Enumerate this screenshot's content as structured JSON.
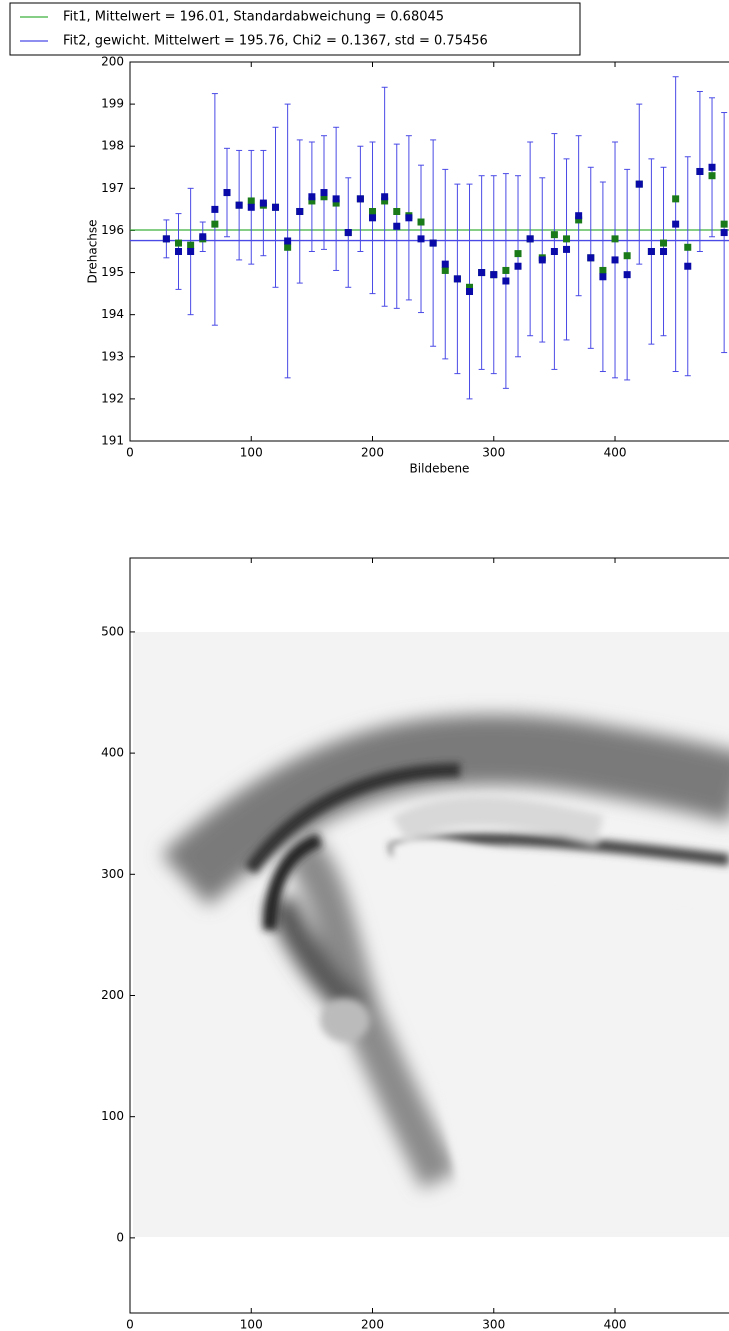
{
  "chart_data": [
    {
      "type": "scatter",
      "xlabel": "Bildebene",
      "ylabel": "Drehachse",
      "xlim": [
        0,
        494
      ],
      "ylim": [
        191,
        200
      ],
      "xticks": [
        0,
        100,
        200,
        300,
        400
      ],
      "yticks": [
        191,
        192,
        193,
        194,
        195,
        196,
        197,
        198,
        199,
        200
      ],
      "lines": [
        {
          "name": "Fit1, Mittelwert = 196.01, Standardabweichung = 0.68045",
          "color": "#3cb03c",
          "value": 196.01
        },
        {
          "name": "Fit2, gewicht. Mittelwert = 195.76, Chi2 = 0.1367, std = 0.75456",
          "color": "#4a4ae6",
          "value": 195.76
        }
      ],
      "x": [
        30,
        40,
        50,
        60,
        70,
        80,
        90,
        100,
        110,
        120,
        130,
        140,
        150,
        160,
        170,
        180,
        190,
        200,
        210,
        220,
        230,
        240,
        250,
        260,
        270,
        280,
        290,
        300,
        310,
        320,
        330,
        340,
        350,
        360,
        370,
        380,
        390,
        400,
        410,
        420,
        430,
        440,
        450,
        460,
        470,
        480,
        490
      ],
      "series": [
        {
          "color": "#1a7a1a",
          "values": [
            195.8,
            195.7,
            195.65,
            195.8,
            196.15,
            196.9,
            196.6,
            196.7,
            196.6,
            196.55,
            195.6,
            196.45,
            196.7,
            196.8,
            196.65,
            195.95,
            196.75,
            196.45,
            196.7,
            196.45,
            196.35,
            196.2,
            195.7,
            195.05,
            194.85,
            194.65,
            195.0,
            194.95,
            195.05,
            195.45,
            195.8,
            195.35,
            195.9,
            195.8,
            196.25,
            195.35,
            195.05,
            195.8,
            195.4,
            197.1,
            195.5,
            195.7,
            196.75,
            195.6,
            197.4,
            197.3,
            196.15
          ]
        },
        {
          "color": "#0a0aa8",
          "error_color": "#4a4ae6",
          "values": [
            195.8,
            195.5,
            195.5,
            195.85,
            196.5,
            196.9,
            196.6,
            196.55,
            196.65,
            196.55,
            195.75,
            196.45,
            196.8,
            196.9,
            196.75,
            195.95,
            196.75,
            196.3,
            196.8,
            196.1,
            196.3,
            195.8,
            195.7,
            195.2,
            194.85,
            194.55,
            195.0,
            194.95,
            194.8,
            195.15,
            195.8,
            195.3,
            195.5,
            195.55,
            196.35,
            195.35,
            194.9,
            195.3,
            194.95,
            197.1,
            195.5,
            195.5,
            196.15,
            195.15,
            197.4,
            197.5,
            195.95
          ],
          "errors": [
            0.45,
            0.9,
            1.5,
            0.35,
            2.75,
            1.05,
            1.3,
            1.35,
            1.25,
            1.9,
            3.25,
            1.7,
            1.3,
            1.35,
            1.7,
            1.3,
            1.25,
            1.8,
            2.6,
            1.95,
            1.95,
            1.75,
            2.45,
            2.25,
            2.25,
            2.55,
            2.3,
            2.35,
            2.55,
            2.15,
            2.3,
            1.95,
            2.8,
            2.15,
            1.9,
            2.15,
            2.25,
            2.8,
            2.5,
            1.9,
            2.2,
            2.0,
            3.5,
            2.6,
            1.9,
            1.65,
            2.85
          ]
        }
      ]
    },
    {
      "type": "image",
      "xlim": [
        0,
        494
      ],
      "ylim": [
        -62,
        561
      ],
      "xticks": [
        0,
        100,
        200,
        300,
        400
      ],
      "yticks": [
        0,
        100,
        200,
        300,
        400,
        500
      ]
    }
  ]
}
